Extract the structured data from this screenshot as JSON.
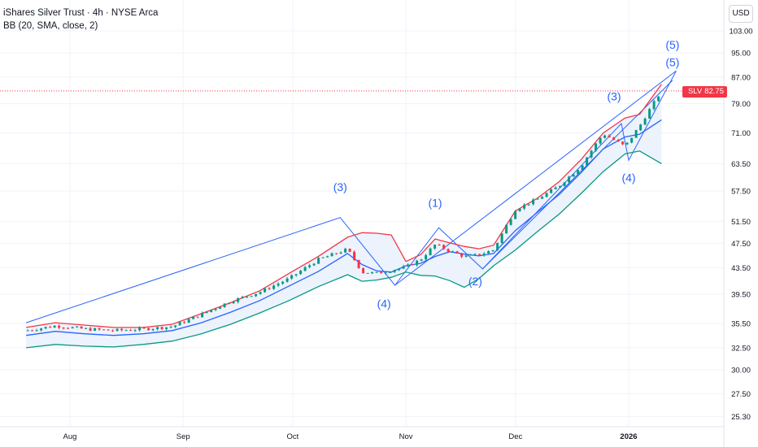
{
  "legend": {
    "symbol_line": "iShares Silver Trust · 4h · NYSE Arca",
    "indicator_line": "BB (20, SMA, close, 2)"
  },
  "currency_button": "USD",
  "price_tag": {
    "symbol": "SLV",
    "value": "82.75"
  },
  "colors": {
    "upper_band": "#f23645",
    "basis": "#2962ff",
    "lower_band": "#089981",
    "band_fill": "#eaf2fc",
    "wave_lines": "#2962ff",
    "candle_up": "#089981",
    "candle_down": "#f23645",
    "price_line": "#f23645"
  },
  "chart_data": {
    "type": "line",
    "title": "iShares Silver Trust · 4h · NYSE Arca",
    "indicator": "BB (20, SMA, close, 2)",
    "price_scale": "log",
    "ylim": [
      24.5,
      110
    ],
    "y_ticks": [
      "103.00",
      "95.00",
      "87.00",
      "79.00",
      "71.00",
      "63.50",
      "57.50",
      "51.50",
      "47.50",
      "43.50",
      "39.50",
      "35.50",
      "32.50",
      "30.00",
      "27.50",
      "25.30"
    ],
    "x_ticks": [
      "Aug",
      "Sep",
      "Oct",
      "Nov",
      "Dec",
      "2026"
    ],
    "x": [
      "Jul 20",
      "Jul 28",
      "Aug 5",
      "Aug 13",
      "Aug 21",
      "Aug 29",
      "Sep 6",
      "Sep 14",
      "Sep 22",
      "Sep 30",
      "Oct 8",
      "Oct 16",
      "Oct 20",
      "Oct 24",
      "Oct 28",
      "Nov 1",
      "Nov 5",
      "Nov 9",
      "Nov 13",
      "Nov 17",
      "Nov 21",
      "Nov 25",
      "Dec 1",
      "Dec 7",
      "Dec 13",
      "Dec 19",
      "Dec 25",
      "Dec 31",
      "Jan 4",
      "Jan 10"
    ],
    "series": [
      {
        "name": "Upper",
        "values": [
          35.0,
          35.6,
          35.3,
          35.0,
          35.0,
          35.4,
          36.8,
          38.3,
          40.0,
          42.6,
          45.3,
          48.6,
          49.4,
          49.3,
          49.0,
          44.5,
          45.6,
          48.3,
          47.6,
          47.0,
          46.6,
          47.2,
          53.5,
          56.0,
          59.5,
          64.5,
          71.0,
          75.0,
          76.0,
          84.8
        ]
      },
      {
        "name": "Basis",
        "values": [
          34.0,
          34.5,
          34.2,
          34.0,
          34.2,
          34.6,
          35.6,
          37.0,
          38.6,
          40.7,
          42.9,
          45.8,
          44.0,
          43.0,
          42.8,
          43.8,
          44.2,
          45.3,
          46.1,
          45.7,
          45.4,
          45.8,
          49.8,
          53.2,
          56.8,
          61.5,
          67.0,
          70.0,
          70.7,
          74.5
        ]
      },
      {
        "name": "Lower",
        "values": [
          32.5,
          32.9,
          32.7,
          32.6,
          32.9,
          33.3,
          34.2,
          35.4,
          36.9,
          38.6,
          40.6,
          42.4,
          41.4,
          41.6,
          42.0,
          42.8,
          42.3,
          42.2,
          41.5,
          40.5,
          41.8,
          43.8,
          46.4,
          49.6,
          52.9,
          57.0,
          61.7,
          65.8,
          66.5,
          63.5
        ]
      },
      {
        "name": "Close",
        "values": [
          34.6,
          35.2,
          34.8,
          34.6,
          34.8,
          35.1,
          36.7,
          38.5,
          39.8,
          41.8,
          44.8,
          46.5,
          42.8,
          42.6,
          43.1,
          43.6,
          44.8,
          47.3,
          46.2,
          45.3,
          45.6,
          46.4,
          53.8,
          55.8,
          58.6,
          63.0,
          70.8,
          67.6,
          72.8,
          82.75
        ]
      }
    ],
    "last_price": 82.75,
    "wave_labels": [
      "(3)",
      "(4)",
      "(1)",
      "(2)",
      "(3)",
      "(4)",
      "(5)",
      "(5)"
    ]
  }
}
